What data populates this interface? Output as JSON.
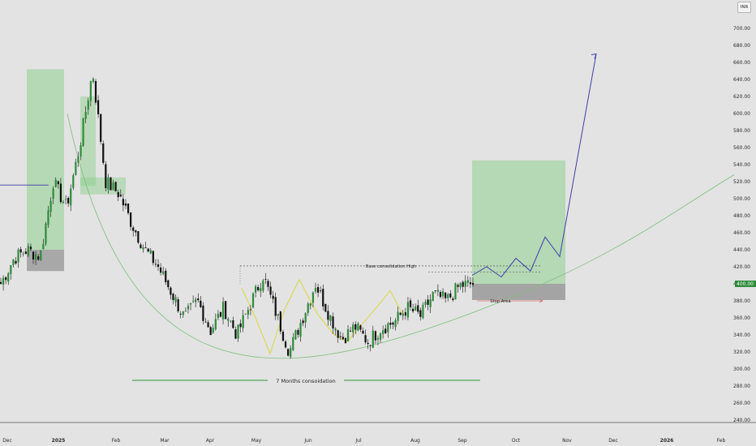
{
  "currency_label": "INR",
  "last_price_label": "400.00",
  "colors": {
    "background": "#e3e3e3",
    "candle_up": "#2e8b3a",
    "candle_down": "#111111",
    "target_zone": "#8fcf8f",
    "stop_zone": "#8f8f8f",
    "projection": "#3f3fa8",
    "cup_curve": "#7cbf7c",
    "base_pattern": "#d8d840",
    "consolidation_line": "#2e9a3a",
    "stop_arrow": "#d46a6a",
    "last_price_tag": "#2e8b3a"
  },
  "annotations": {
    "base_high": "Base consolidation High",
    "stop_area": "Stop Area",
    "consolidation": "7 Months consoidation"
  },
  "chart_data": {
    "type": "candlestick",
    "ylim": [
      235,
      715
    ],
    "y_ticks": [
      700,
      680,
      660,
      640,
      620,
      600,
      580,
      560,
      540,
      520,
      500,
      480,
      460,
      440,
      420,
      400,
      380,
      360,
      340,
      320,
      300,
      280,
      260,
      240
    ],
    "x_ticks": [
      "Dec",
      "2025",
      "Feb",
      "Mar",
      "Apr",
      "May",
      "Jun",
      "Jul",
      "Aug",
      "Sep",
      "Oct",
      "Nov",
      "Dec",
      "2026",
      "Feb"
    ],
    "current_price": 400,
    "base_consolidation_high": 421,
    "stop_level": 381,
    "target_level": 545,
    "projection_target": 670,
    "price_path": [
      [
        385,
        400
      ],
      [
        420,
        430
      ],
      [
        435,
        440
      ],
      [
        425,
        432
      ],
      [
        505,
        520
      ],
      [
        455,
        490
      ],
      [
        500,
        560
      ],
      [
        660,
        650
      ],
      [
        580,
        520
      ],
      [
        520,
        506
      ],
      [
        490,
        470
      ],
      [
        460,
        440
      ],
      [
        430,
        420
      ],
      [
        400,
        390
      ],
      [
        375,
        360
      ],
      [
        392,
        380
      ],
      [
        360,
        345
      ],
      [
        382,
        372
      ],
      [
        350,
        340
      ],
      [
        388,
        375
      ],
      [
        415,
        410
      ],
      [
        385,
        365
      ],
      [
        340,
        320
      ],
      [
        378,
        360
      ],
      [
        408,
        400
      ],
      [
        380,
        365
      ],
      [
        348,
        335
      ],
      [
        360,
        350
      ],
      [
        330,
        332
      ],
      [
        352,
        348
      ],
      [
        360,
        355
      ],
      [
        378,
        372
      ],
      [
        370,
        362
      ],
      [
        395,
        388
      ],
      [
        385,
        380
      ],
      [
        392,
        398
      ],
      [
        405,
        400
      ]
    ],
    "projection_path": [
      410,
      420,
      408,
      430,
      415,
      455,
      432,
      670
    ]
  }
}
